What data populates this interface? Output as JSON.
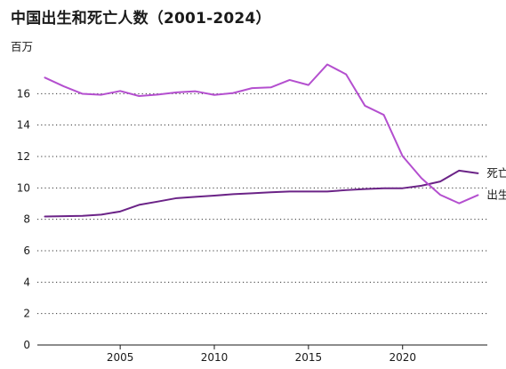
{
  "title": "中国出生和死亡人数（2001-2024）",
  "unit": "百万",
  "chart_data": {
    "type": "line",
    "title": "中国出生和死亡人数（2001-2024）",
    "ylabel": "百万",
    "xlabel": "",
    "ylim": [
      0,
      18
    ],
    "yticks": [
      0,
      2,
      4,
      6,
      8,
      10,
      12,
      14,
      16
    ],
    "xlim": [
      2000.6,
      2024.5
    ],
    "xticks": [
      2005,
      2010,
      2015,
      2020
    ],
    "grid": "horizontal dotted",
    "legend": "direct labels at line ends",
    "x": [
      2001,
      2002,
      2003,
      2004,
      2005,
      2006,
      2007,
      2008,
      2009,
      2010,
      2011,
      2012,
      2013,
      2014,
      2015,
      2016,
      2017,
      2018,
      2019,
      2020,
      2021,
      2022,
      2023,
      2024
    ],
    "series": [
      {
        "name": "死亡",
        "color": "#6b2387",
        "values": [
          8.18,
          8.2,
          8.22,
          8.3,
          8.5,
          8.92,
          9.13,
          9.35,
          9.43,
          9.51,
          9.6,
          9.66,
          9.72,
          9.77,
          9.77,
          9.77,
          9.86,
          9.93,
          9.98,
          9.98,
          10.14,
          10.41,
          11.1,
          10.93
        ]
      },
      {
        "name": "出生",
        "color": "#b44fcf",
        "values": [
          17.02,
          16.47,
          15.99,
          15.93,
          16.17,
          15.85,
          15.94,
          16.08,
          16.15,
          15.92,
          16.04,
          16.35,
          16.4,
          16.87,
          16.55,
          17.86,
          17.23,
          15.23,
          14.65,
          12.02,
          10.62,
          9.56,
          9.02,
          9.54
        ]
      }
    ]
  }
}
